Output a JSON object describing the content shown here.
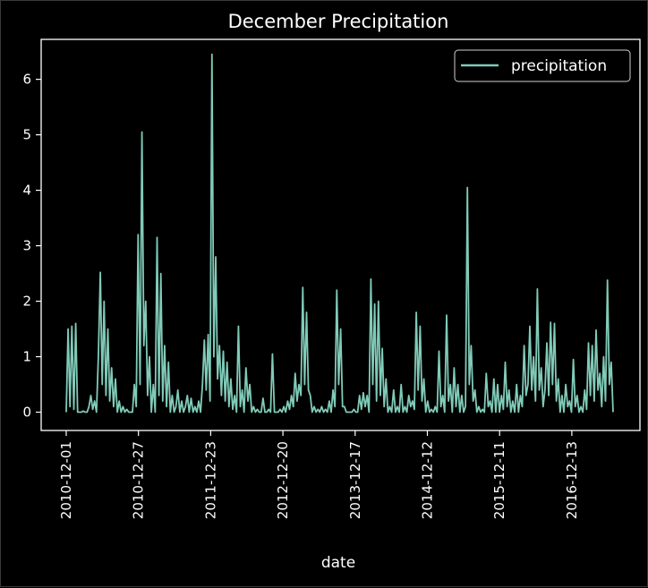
{
  "chart_data": {
    "type": "line",
    "title": "December Precipitation",
    "xlabel": "date",
    "ylabel": "",
    "ylim": [
      -0.33,
      6.72
    ],
    "y_ticks": [
      0,
      1,
      2,
      3,
      4,
      5,
      6
    ],
    "x_tick_labels": [
      "2010-12-01",
      "2010-12-27",
      "2011-12-23",
      "2012-12-20",
      "2013-12-17",
      "2014-12-12",
      "2015-12-11",
      "2016-12-13"
    ],
    "legend_position": "top-right",
    "grid": false,
    "series_color": "#80cbb8",
    "series": [
      {
        "name": "precipitation",
        "y": [
          0.0,
          1.5,
          0.1,
          1.55,
          0.05,
          1.6,
          0.0,
          0.0,
          0.0,
          0.02,
          0.0,
          0.0,
          0.1,
          0.3,
          0.05,
          0.2,
          0.0,
          1.0,
          2.52,
          0.5,
          2.0,
          0.3,
          1.5,
          0.2,
          0.8,
          0.1,
          0.6,
          0.0,
          0.2,
          0.0,
          0.1,
          0.0,
          0.05,
          0.0,
          0.0,
          0.0,
          0.5,
          0.1,
          3.2,
          0.5,
          5.05,
          1.2,
          2.0,
          0.3,
          1.0,
          0.0,
          0.5,
          0.0,
          3.15,
          0.3,
          2.5,
          0.2,
          1.2,
          0.1,
          0.9,
          0.0,
          0.3,
          0.0,
          0.1,
          0.4,
          0.0,
          0.2,
          0.0,
          0.1,
          0.3,
          0.0,
          0.25,
          0.0,
          0.1,
          0.0,
          0.2,
          0.0,
          0.5,
          1.3,
          0.4,
          1.4,
          0.2,
          6.45,
          1.0,
          2.8,
          0.6,
          1.2,
          0.3,
          1.1,
          0.2,
          0.9,
          0.1,
          0.6,
          0.05,
          0.3,
          0.0,
          1.55,
          0.1,
          0.4,
          0.0,
          0.8,
          0.2,
          0.5,
          0.0,
          0.1,
          0.0,
          0.05,
          0.0,
          0.0,
          0.25,
          0.0,
          0.0,
          0.05,
          0.0,
          1.05,
          0.0,
          0.0,
          0.0,
          0.05,
          0.0,
          0.1,
          0.0,
          0.2,
          0.05,
          0.3,
          0.1,
          0.7,
          0.2,
          0.5,
          0.3,
          2.25,
          0.5,
          1.8,
          0.4,
          0.3,
          0.0,
          0.1,
          0.0,
          0.05,
          0.0,
          0.1,
          0.0,
          0.05,
          0.0,
          0.2,
          0.0,
          0.4,
          0.1,
          2.2,
          0.5,
          1.5,
          0.1,
          0.1,
          0.0,
          0.0,
          0.0,
          0.0,
          0.05,
          0.0,
          0.0,
          0.3,
          0.05,
          0.35,
          0.1,
          0.3,
          0.0,
          2.4,
          0.5,
          1.95,
          0.2,
          2.0,
          0.3,
          1.15,
          0.1,
          0.6,
          0.0,
          0.1,
          0.0,
          0.4,
          0.0,
          0.1,
          0.0,
          0.5,
          0.0,
          0.1,
          0.0,
          0.3,
          0.1,
          0.2,
          0.05,
          1.8,
          0.4,
          1.55,
          0.2,
          0.6,
          0.0,
          0.2,
          0.0,
          0.05,
          0.0,
          0.1,
          0.0,
          1.1,
          0.1,
          0.3,
          0.0,
          1.75,
          0.2,
          0.5,
          0.0,
          0.8,
          0.1,
          0.5,
          0.0,
          0.3,
          0.0,
          0.1,
          4.05,
          0.5,
          1.2,
          0.2,
          0.4,
          0.0,
          0.1,
          0.0,
          0.05,
          0.0,
          0.7,
          0.1,
          0.2,
          0.0,
          0.6,
          0.0,
          0.5,
          0.0,
          0.3,
          0.05,
          0.9,
          0.1,
          0.4,
          0.0,
          0.2,
          0.0,
          0.5,
          0.0,
          0.3,
          0.1,
          1.2,
          0.3,
          0.5,
          1.55,
          0.4,
          1.0,
          0.2,
          2.22,
          0.4,
          0.8,
          0.1,
          0.4,
          1.25,
          0.3,
          1.62,
          0.5,
          1.6,
          0.2,
          0.6,
          0.0,
          0.3,
          0.0,
          0.5,
          0.1,
          0.2,
          0.0,
          0.95,
          0.1,
          0.3,
          0.0,
          0.1,
          0.0,
          0.4,
          0.05,
          1.25,
          0.3,
          1.2,
          0.2,
          1.48,
          0.4,
          0.7,
          0.1,
          1.0,
          0.2,
          2.38,
          0.5,
          0.9,
          0.0
        ]
      }
    ]
  }
}
